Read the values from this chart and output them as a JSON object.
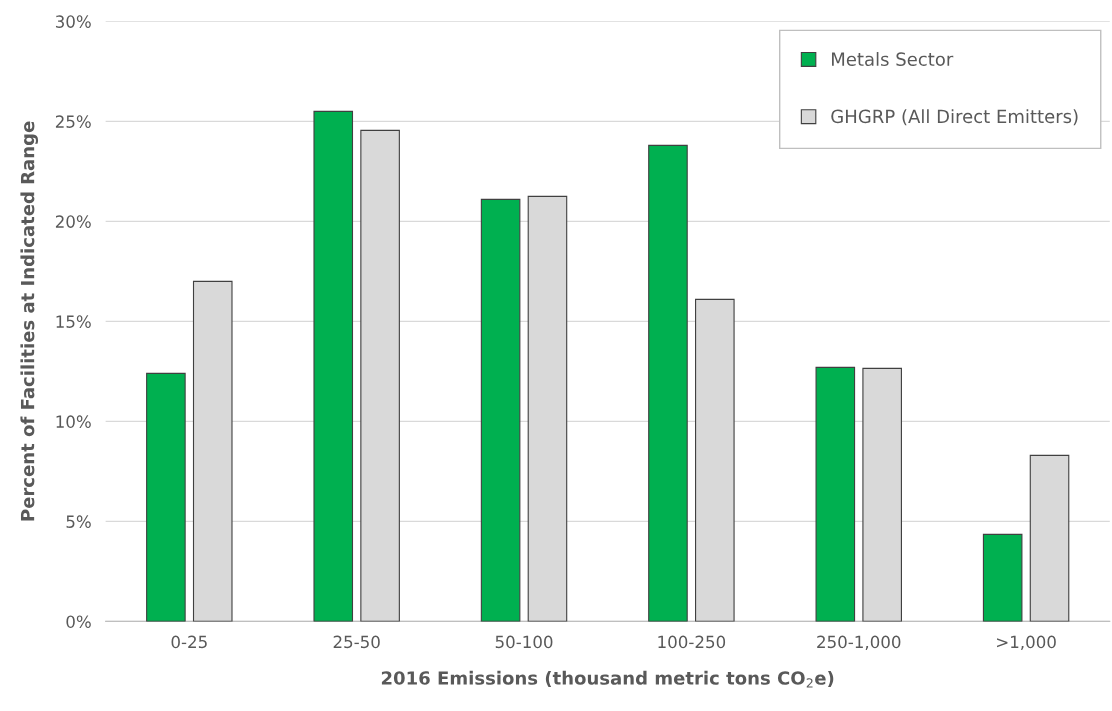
{
  "chart_data": {
    "type": "bar",
    "xlabel": "2016 Emissions (thousand metric tons CO$_{2}$e)",
    "ylabel": "Percent of Facilities at Indicated Range",
    "categories": [
      "0-25",
      "25-50",
      "50-100",
      "100-250",
      "250-1,000",
      ">1,000"
    ],
    "series": [
      {
        "name": "Metals Sector",
        "color": "#00b050",
        "values": [
          12.4,
          25.5,
          21.1,
          23.8,
          12.7,
          4.35
        ]
      },
      {
        "name": "GHGRP (All Direct Emitters)",
        "color": "#d9d9d9",
        "values": [
          17.0,
          24.55,
          21.25,
          16.1,
          12.65,
          8.3
        ]
      }
    ],
    "ylim": [
      0,
      30
    ],
    "yticks": [
      {
        "value": 0,
        "label": "0%"
      },
      {
        "value": 5,
        "label": "5%"
      },
      {
        "value": 10,
        "label": "10%"
      },
      {
        "value": 15,
        "label": "15%"
      },
      {
        "value": 20,
        "label": "20%"
      },
      {
        "value": 25,
        "label": "25%"
      },
      {
        "value": 30,
        "label": "30%"
      }
    ],
    "grid": "y",
    "legend": "top right"
  }
}
